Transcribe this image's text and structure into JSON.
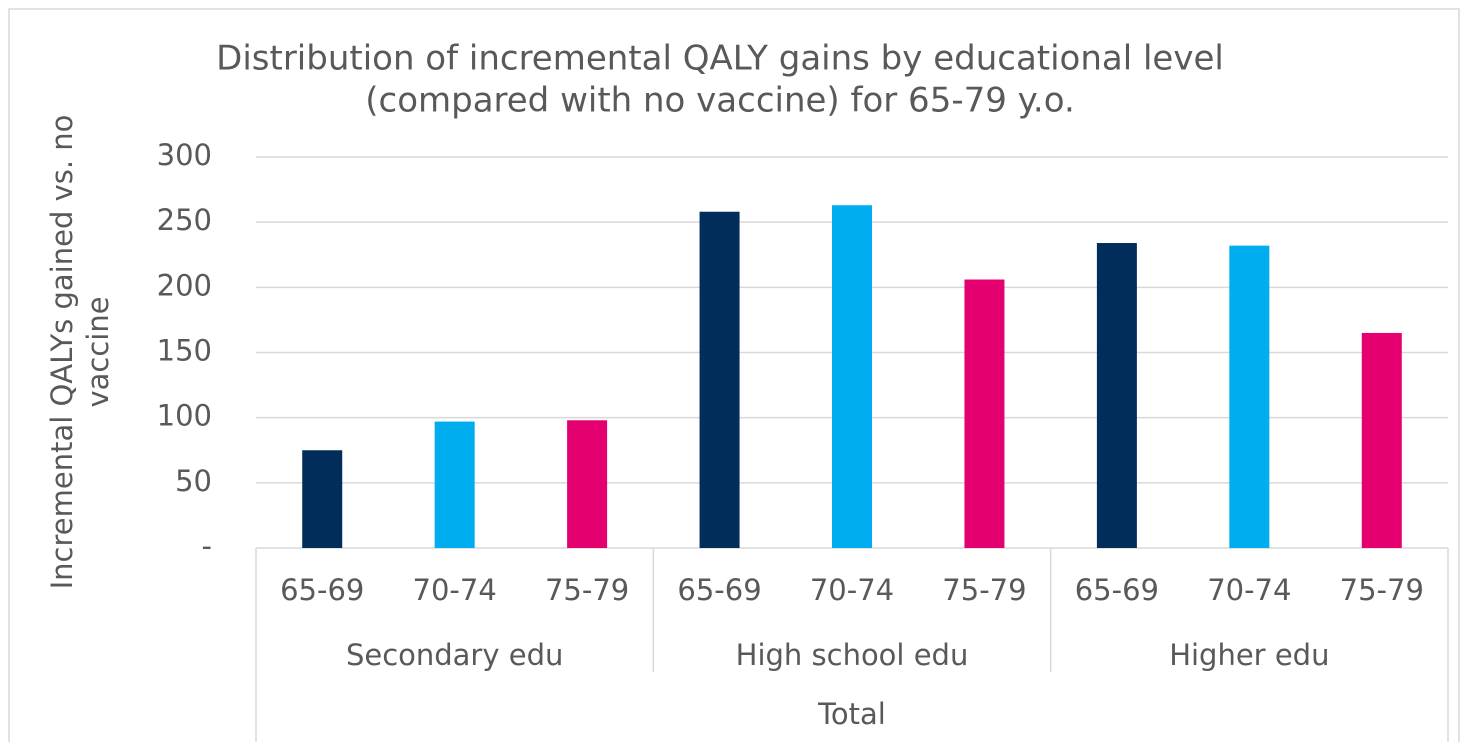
{
  "chart_data": {
    "type": "bar",
    "title": [
      "Distribution of incremental QALY gains by educational level",
      "(compared with no vaccine) for 65-79 y.o."
    ],
    "y_label": [
      "Incremental QALYs gained vs. no",
      "vaccine"
    ],
    "categories": [
      "65-69",
      "70-74",
      "75-79",
      "65-69",
      "70-74",
      "75-79",
      "65-69",
      "70-74",
      "75-79"
    ],
    "groups": [
      "Secondary edu",
      "High school edu",
      "Higher edu"
    ],
    "top_group": "Total",
    "values": [
      75,
      97,
      98,
      258,
      263,
      206,
      234,
      232,
      165
    ],
    "colors": [
      "#002d5a",
      "#00aeef",
      "#e4006f",
      "#002d5a",
      "#00aeef",
      "#e4006f",
      "#002d5a",
      "#00aeef",
      "#e4006f"
    ],
    "ylim": [
      0,
      300
    ],
    "yticks": [
      {
        "value": 0,
        "label": "-"
      },
      50,
      100,
      150,
      200,
      250,
      300
    ],
    "grid": true
  }
}
